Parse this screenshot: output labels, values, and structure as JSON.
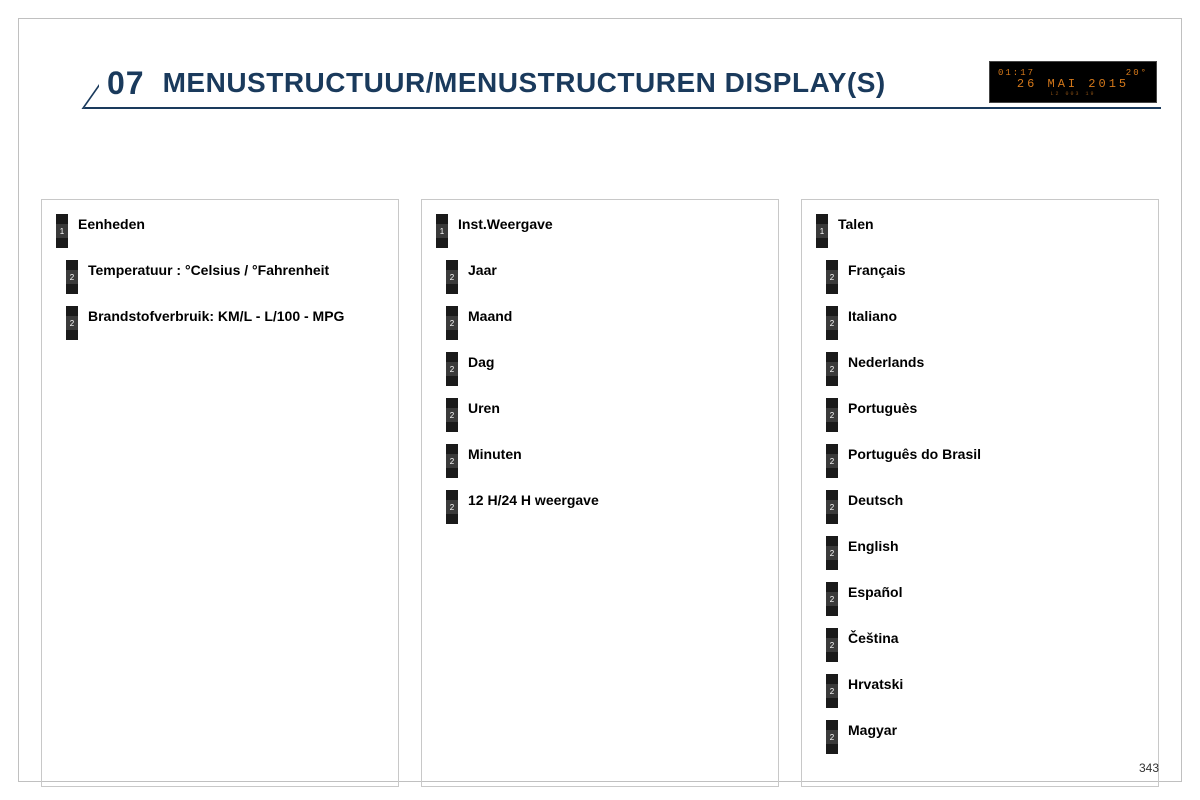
{
  "header": {
    "section_number": "07",
    "section_title": "MENUSTRUCTUUR/MENUSTRUCTUREN DISPLAY(S)"
  },
  "display_widget": {
    "time": "01:17",
    "temp": "20°",
    "date": "26 MAI 2015",
    "bottom": "L2   003 19"
  },
  "panels": [
    {
      "items": [
        {
          "level": 1,
          "num": "1",
          "label": "Eenheden"
        },
        {
          "level": 2,
          "num": "2",
          "label": "Temperatuur : °Celsius / °Fahrenheit"
        },
        {
          "level": 2,
          "num": "2",
          "label": "Brandstofverbruik: KM/L - L/100 - MPG"
        }
      ]
    },
    {
      "items": [
        {
          "level": 1,
          "num": "1",
          "label": "Inst.Weergave"
        },
        {
          "level": 2,
          "num": "2",
          "label": "Jaar"
        },
        {
          "level": 2,
          "num": "2",
          "label": "Maand"
        },
        {
          "level": 2,
          "num": "2",
          "label": "Dag"
        },
        {
          "level": 2,
          "num": "2",
          "label": "Uren"
        },
        {
          "level": 2,
          "num": "2",
          "label": "Minuten"
        },
        {
          "level": 2,
          "num": "2",
          "label": "12 H/24 H weergave"
        }
      ]
    },
    {
      "items": [
        {
          "level": 1,
          "num": "1",
          "label": "Talen"
        },
        {
          "level": 2,
          "num": "2",
          "label": "Français"
        },
        {
          "level": 2,
          "num": "2",
          "label": "Italiano"
        },
        {
          "level": 2,
          "num": "2",
          "label": "Nederlands"
        },
        {
          "level": 2,
          "num": "2",
          "label": "Portuguès"
        },
        {
          "level": 2,
          "num": "2",
          "label": "Português do Brasil"
        },
        {
          "level": 2,
          "num": "2",
          "label": "Deutsch"
        },
        {
          "level": 2,
          "num": "2",
          "label": "English"
        },
        {
          "level": 2,
          "num": "2",
          "label": "Español"
        },
        {
          "level": 2,
          "num": "2",
          "label": "Čeština"
        },
        {
          "level": 2,
          "num": "2",
          "label": "Hrvatski"
        },
        {
          "level": 2,
          "num": "2",
          "label": "Magyar"
        }
      ]
    }
  ],
  "page_number": "343",
  "colors": {
    "header_line": "#1a3a5c",
    "panel_border": "#c8c8c8",
    "marker_dark": "#1a1a1a",
    "marker_mid": "#3a3a3a",
    "display_bg": "#000000",
    "display_fg": "#d4781a"
  }
}
